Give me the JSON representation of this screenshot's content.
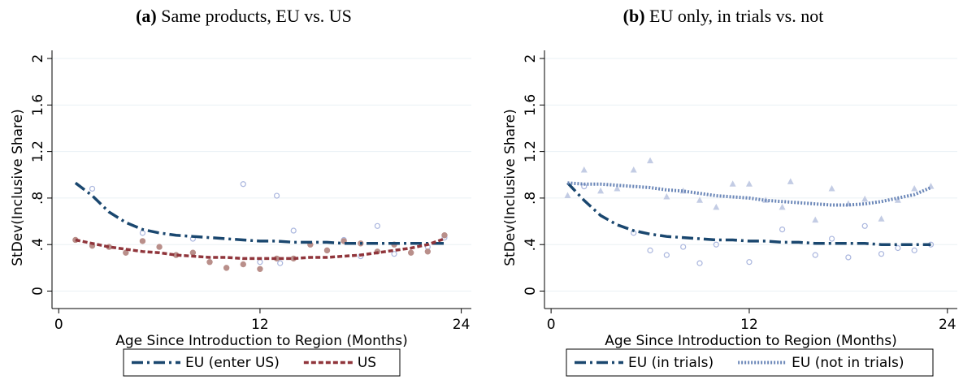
{
  "chart_data": [
    {
      "type": "line",
      "label": "(a)",
      "title": "Same products, EU vs. US",
      "xlabel": "Age Since Introduction to Region (Months)",
      "ylabel": "StDev(Inclusive Share)",
      "xlim": [
        -0.4,
        24.6
      ],
      "xticks": [
        0,
        12,
        24
      ],
      "ylim": [
        -0.15,
        2.07
      ],
      "yticks": [
        0,
        {
          "value": 0.4,
          "label": ".4"
        },
        {
          "value": 0.8,
          "label": ".8"
        },
        1.2,
        1.6,
        2
      ],
      "grid": true,
      "legend": "bottom",
      "series": [
        {
          "name": "EU (enter US)",
          "color": "#1a476f",
          "dash": "dash-dot",
          "marker": "circle-hollow",
          "marker_color": "#aab6de",
          "x": [
            1,
            2,
            3,
            4,
            5,
            6,
            7,
            8,
            9,
            10,
            11,
            12,
            13,
            14,
            15,
            16,
            17,
            18,
            19,
            20,
            21,
            22,
            23
          ],
          "values": [
            0.93,
            0.82,
            0.68,
            0.59,
            0.53,
            0.5,
            0.48,
            0.47,
            0.46,
            0.45,
            0.44,
            0.43,
            0.43,
            0.42,
            0.42,
            0.42,
            0.41,
            0.41,
            0.41,
            0.41,
            0.41,
            0.41,
            0.41
          ],
          "scatter_x": [
            2,
            5,
            8,
            11,
            12,
            13,
            13.2,
            14,
            17,
            18,
            19,
            20,
            22,
            23
          ],
          "scatter_values": [
            0.88,
            0.5,
            0.45,
            0.92,
            0.25,
            0.82,
            0.24,
            0.52,
            0.44,
            0.3,
            0.56,
            0.32,
            0.38,
            0.46
          ]
        },
        {
          "name": "US",
          "color": "#90353b",
          "dash": "dash",
          "marker": "circle",
          "marker_color": "#b98f8a",
          "x": [
            1,
            2,
            3,
            4,
            5,
            6,
            7,
            8,
            9,
            10,
            11,
            12,
            13,
            14,
            15,
            16,
            17,
            18,
            19,
            20,
            21,
            22,
            23
          ],
          "values": [
            0.44,
            0.41,
            0.38,
            0.36,
            0.34,
            0.33,
            0.31,
            0.3,
            0.29,
            0.29,
            0.28,
            0.28,
            0.28,
            0.28,
            0.29,
            0.29,
            0.3,
            0.31,
            0.33,
            0.35,
            0.37,
            0.4,
            0.45
          ],
          "scatter_x": [
            1,
            2,
            3,
            4,
            5,
            6,
            7,
            8,
            9,
            10,
            11,
            12,
            13,
            14,
            15,
            16,
            17,
            18,
            19,
            20,
            21,
            22,
            23
          ],
          "scatter_values": [
            0.44,
            0.39,
            0.38,
            0.33,
            0.43,
            0.38,
            0.31,
            0.33,
            0.25,
            0.2,
            0.23,
            0.19,
            0.28,
            0.28,
            0.4,
            0.35,
            0.43,
            0.41,
            0.34,
            0.4,
            0.33,
            0.34,
            0.48
          ]
        }
      ]
    },
    {
      "type": "line",
      "label": "(b)",
      "title": "EU only, in trials vs. not",
      "xlabel": "Age Since Introduction to Region (Months)",
      "ylabel": "StDev(Inclusive Share)",
      "xlim": [
        -0.4,
        24.6
      ],
      "xticks": [
        0,
        12,
        24
      ],
      "ylim": [
        -0.15,
        2.07
      ],
      "yticks": [
        0,
        {
          "value": 0.4,
          "label": ".4"
        },
        {
          "value": 0.8,
          "label": ".8"
        },
        1.2,
        1.6,
        2
      ],
      "grid": true,
      "legend": "bottom",
      "series": [
        {
          "name": "EU (in trials)",
          "color": "#1a476f",
          "dash": "dash-dot",
          "marker": "circle-hollow",
          "marker_color": "#aab6de",
          "x": [
            1,
            2,
            3,
            4,
            5,
            6,
            7,
            8,
            9,
            10,
            11,
            12,
            13,
            14,
            15,
            16,
            17,
            18,
            19,
            20,
            21,
            22,
            23
          ],
          "values": [
            0.93,
            0.78,
            0.65,
            0.57,
            0.52,
            0.49,
            0.47,
            0.46,
            0.45,
            0.44,
            0.44,
            0.43,
            0.43,
            0.42,
            0.42,
            0.41,
            0.41,
            0.41,
            0.41,
            0.4,
            0.4,
            0.4,
            0.4
          ],
          "scatter_x": [
            2,
            5,
            6,
            7,
            8,
            9,
            10,
            12,
            14,
            16,
            17,
            18,
            19,
            20,
            21,
            22,
            23
          ],
          "scatter_values": [
            0.9,
            0.5,
            0.35,
            0.31,
            0.38,
            0.24,
            0.4,
            0.25,
            0.53,
            0.31,
            0.45,
            0.29,
            0.56,
            0.32,
            0.37,
            0.35,
            0.4
          ]
        },
        {
          "name": "EU (not in trials)",
          "color": "#6b87b8",
          "dash": "dot",
          "marker": "triangle",
          "marker_color": "#c3cce4",
          "x": [
            1,
            2,
            3,
            4,
            5,
            6,
            7,
            8,
            9,
            10,
            11,
            12,
            13,
            14,
            15,
            16,
            17,
            18,
            19,
            20,
            21,
            22,
            23
          ],
          "values": [
            0.93,
            0.92,
            0.92,
            0.91,
            0.9,
            0.89,
            0.87,
            0.86,
            0.84,
            0.82,
            0.81,
            0.8,
            0.78,
            0.77,
            0.76,
            0.75,
            0.74,
            0.74,
            0.75,
            0.77,
            0.8,
            0.83,
            0.89
          ],
          "scatter_x": [
            1,
            2,
            3,
            4,
            5,
            6,
            7,
            8,
            9,
            10,
            11,
            12,
            13,
            14,
            14.5,
            16,
            17,
            18,
            19,
            20,
            21,
            22,
            23
          ],
          "scatter_values": [
            0.82,
            1.04,
            0.86,
            0.88,
            1.04,
            1.12,
            0.81,
            0.86,
            0.78,
            0.72,
            0.92,
            0.92,
            0.78,
            0.72,
            0.94,
            0.61,
            0.88,
            0.75,
            0.79,
            0.62,
            0.78,
            0.88,
            0.9
          ]
        }
      ]
    }
  ]
}
